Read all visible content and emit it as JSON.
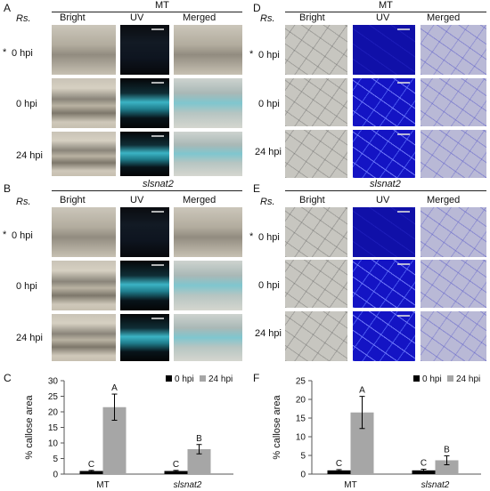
{
  "panels": {
    "A": {
      "letter": "A",
      "title": "MT",
      "rs": "Rs.",
      "cols": [
        "Bright",
        "UV",
        "Merged"
      ],
      "rows": [
        "0 hpi",
        "0 hpi",
        "24 hpi"
      ],
      "star": "*"
    },
    "B": {
      "letter": "B",
      "title": "slsnat2",
      "rs": "Rs.",
      "cols": [
        "Bright",
        "UV",
        "Merged"
      ],
      "rows": [
        "0 hpi",
        "0 hpi",
        "24 hpi"
      ],
      "star": "*"
    },
    "D": {
      "letter": "D",
      "title": "MT",
      "rs": "Rs.",
      "cols": [
        "Bright",
        "UV",
        "Merged"
      ],
      "rows": [
        "0 hpi",
        "0 hpi",
        "24 hpi"
      ],
      "star": "*"
    },
    "E": {
      "letter": "E",
      "title": "slsnat2",
      "rs": "Rs.",
      "cols": [
        "Bright",
        "UV",
        "Merged"
      ],
      "rows": [
        "0 hpi",
        "0 hpi",
        "24 hpi"
      ],
      "star": "*"
    },
    "C": {
      "letter": "C"
    },
    "F": {
      "letter": "F"
    }
  },
  "chart_data": [
    {
      "panel": "C",
      "type": "bar",
      "categories": [
        "MT",
        "slsnat2"
      ],
      "series": [
        {
          "name": "0 hpi",
          "color": "#000000",
          "values": [
            1.0,
            1.0
          ],
          "errors": [
            0.2,
            0.2
          ],
          "letters": [
            "C",
            "C"
          ]
        },
        {
          "name": "24 hpi",
          "color": "#a6a6a6",
          "values": [
            21.5,
            8.0
          ],
          "errors": [
            4.2,
            1.5
          ],
          "letters": [
            "A",
            "B"
          ]
        }
      ],
      "ylabel": "% callose area",
      "ylim": [
        0,
        30
      ],
      "yticks": [
        0,
        5,
        10,
        15,
        20,
        25,
        30
      ],
      "legend": "top-right"
    },
    {
      "panel": "F",
      "type": "bar",
      "categories": [
        "MT",
        "slsnat2"
      ],
      "series": [
        {
          "name": "0 hpi",
          "color": "#000000",
          "values": [
            1.0,
            1.0
          ],
          "errors": [
            0.2,
            0.3
          ],
          "letters": [
            "C",
            "C"
          ]
        },
        {
          "name": "24 hpi",
          "color": "#a6a6a6",
          "values": [
            16.5,
            3.7
          ],
          "errors": [
            4.3,
            1.2
          ],
          "letters": [
            "A",
            "B"
          ]
        }
      ],
      "ylabel": "% callose area",
      "ylim": [
        0,
        25
      ],
      "yticks": [
        0,
        5,
        10,
        15,
        20,
        25
      ],
      "legend": "top-right"
    }
  ]
}
